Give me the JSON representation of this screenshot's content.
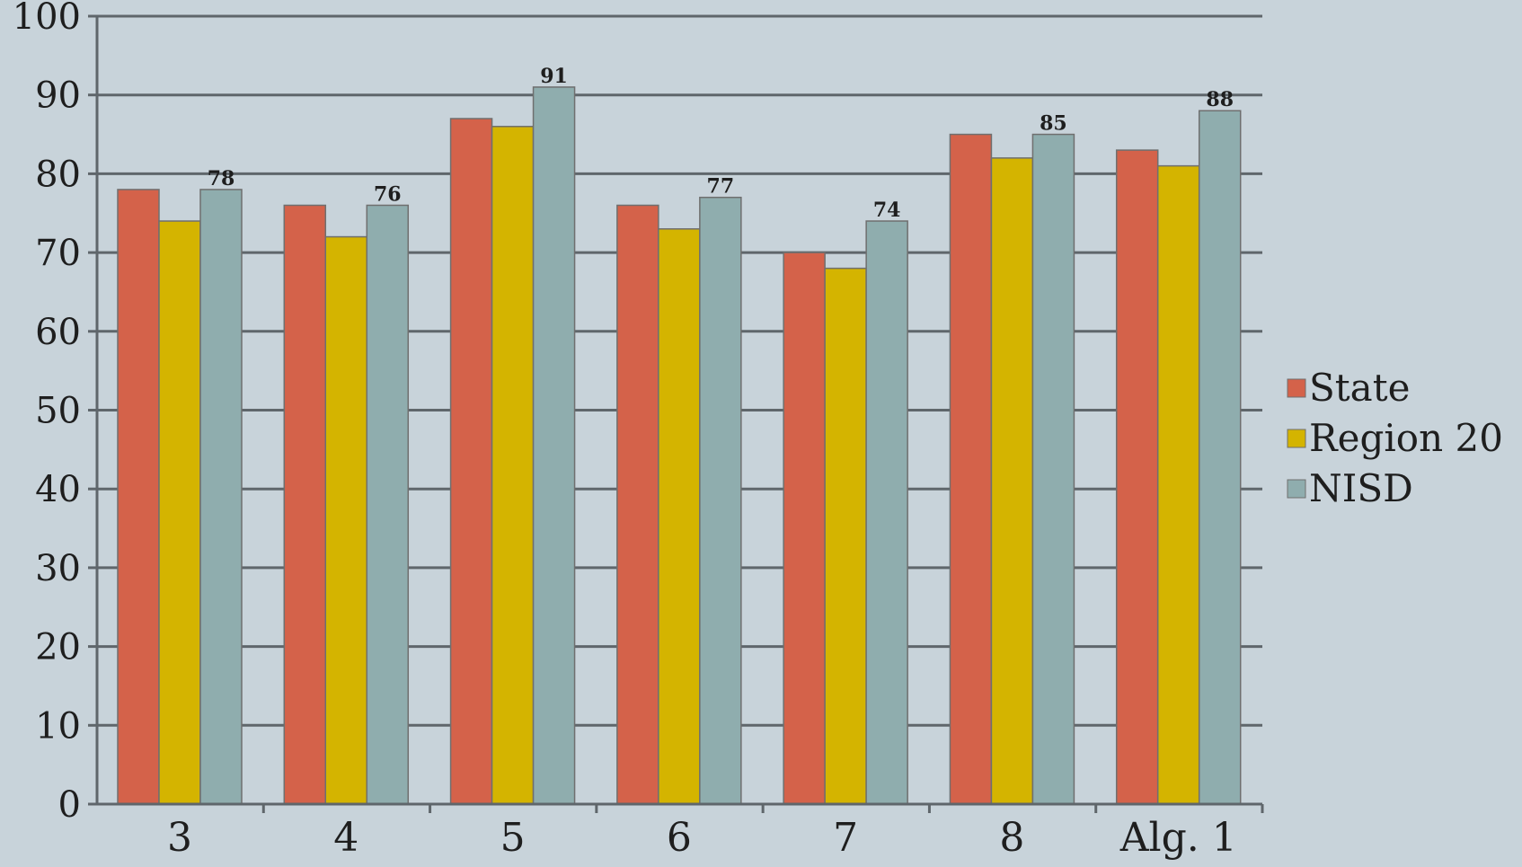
{
  "chart_data": {
    "type": "bar",
    "categories": [
      "3",
      "4",
      "5",
      "6",
      "7",
      "8",
      "Alg. 1"
    ],
    "series": [
      {
        "name": "State",
        "color": "#d4624a",
        "values": [
          78,
          76,
          87,
          76,
          70,
          85,
          83
        ]
      },
      {
        "name": "Region 20",
        "color": "#d4b400",
        "values": [
          74,
          72,
          86,
          73,
          68,
          82,
          81
        ]
      },
      {
        "name": "NISD",
        "color": "#8fadae",
        "values": [
          78,
          76,
          91,
          77,
          74,
          85,
          88
        ],
        "data_labels": [
          "78",
          "76",
          "91",
          "77",
          "74",
          "85",
          "88"
        ]
      }
    ],
    "ylim": [
      0,
      100
    ],
    "yticks": [
      "0",
      "10",
      "20",
      "30",
      "40",
      "50",
      "60",
      "70",
      "80",
      "90",
      "100"
    ],
    "grid": true,
    "legend": "right"
  }
}
